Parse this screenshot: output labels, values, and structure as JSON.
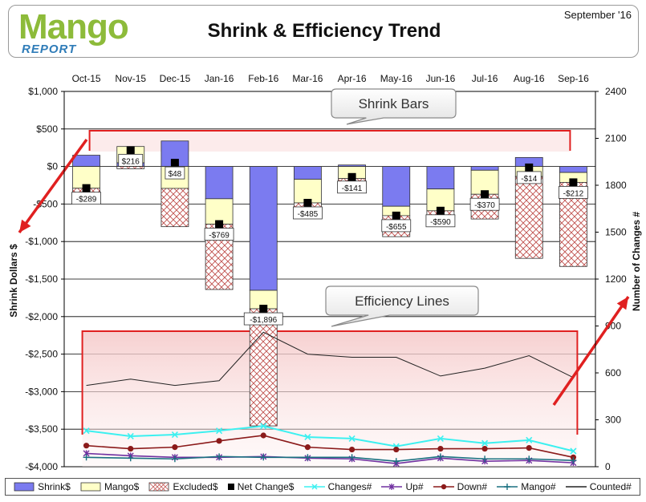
{
  "header": {
    "logo_text": "Mango",
    "logo_subtext": "REPORT",
    "title": "Shrink & Efficiency Trend",
    "date": "September '16"
  },
  "colors": {
    "shrink": "#7b7bf0",
    "mango": "#ffffc8",
    "excluded": "#c0504d",
    "changes": "#3cf0f0",
    "up": "#7030a0",
    "down": "#8b1a1a",
    "mango_line": "#1a7080",
    "counted": "#222222",
    "callout_red": "#e02020"
  },
  "chart_data": {
    "type": "bar",
    "title": "Shrink & Efficiency Trend",
    "categories": [
      "Oct-15",
      "Nov-15",
      "Dec-15",
      "Jan-16",
      "Feb-16",
      "Mar-16",
      "Apr-16",
      "May-16",
      "Jun-16",
      "Jul-16",
      "Aug-16",
      "Sep-16"
    ],
    "ylabel": "Shrink Dollars $",
    "y2label": "Number of Changes #",
    "ylim": [
      -4000,
      1000
    ],
    "y2lim": [
      0,
      2400
    ],
    "yticks": [
      1000,
      500,
      0,
      -500,
      -1000,
      -1500,
      -2000,
      -2500,
      -3000,
      -3500,
      -4000
    ],
    "ytick_labels": [
      "$1,000",
      "$500",
      "$0",
      "-$500",
      "-$1,000",
      "-$1,500",
      "-$2,000",
      "-$2,500",
      "-$3,000",
      "-$3,500",
      "-$4,000"
    ],
    "y2ticks": [
      2400,
      2100,
      1800,
      1500,
      1200,
      900,
      600,
      300,
      0
    ],
    "y2tick_labels": [
      "2400",
      "2100",
      "1800",
      "1500",
      "1200",
      "900",
      "600",
      "300",
      "0"
    ],
    "series": [
      {
        "name": "Shrink$",
        "kind": "stacked-bar",
        "values": [
          150,
          50,
          340,
          -430,
          -1650,
          -170,
          20,
          -530,
          -300,
          -50,
          120,
          -80
        ]
      },
      {
        "name": "Mango$",
        "kind": "stacked-bar",
        "values": [
          -290,
          216,
          -292,
          -339,
          -246,
          -315,
          -161,
          -125,
          -290,
          -320,
          -134,
          -132
        ]
      },
      {
        "name": "Excluded$",
        "kind": "stacked-bar",
        "values": [
          -120,
          -30,
          -510,
          -870,
          -1560,
          -70,
          -170,
          -280,
          -110,
          -330,
          -1090,
          -1120
        ]
      },
      {
        "name": "Net Change$",
        "kind": "marker",
        "values": [
          -289,
          216,
          48,
          -769,
          -1896,
          -485,
          -141,
          -655,
          -590,
          -370,
          -14,
          -212
        ]
      },
      {
        "name": "Changes#",
        "kind": "line",
        "axis": "y2",
        "values": [
          230,
          195,
          205,
          230,
          260,
          190,
          180,
          130,
          180,
          150,
          170,
          100
        ]
      },
      {
        "name": "Up#",
        "kind": "line",
        "axis": "y2",
        "values": [
          85,
          70,
          60,
          60,
          65,
          55,
          50,
          20,
          55,
          35,
          40,
          25
        ]
      },
      {
        "name": "Down#",
        "kind": "line",
        "axis": "y2",
        "values": [
          135,
          115,
          125,
          165,
          200,
          125,
          110,
          110,
          115,
          115,
          120,
          60
        ]
      },
      {
        "name": "Mango#",
        "kind": "line",
        "axis": "y2",
        "values": [
          60,
          55,
          50,
          65,
          60,
          60,
          60,
          35,
          65,
          50,
          50,
          40
        ]
      },
      {
        "name": "Counted#",
        "kind": "line",
        "axis": "y2",
        "values": [
          520,
          560,
          520,
          550,
          860,
          720,
          700,
          700,
          580,
          630,
          710,
          570
        ]
      }
    ],
    "data_labels": [
      "-$289",
      "$216",
      "$48",
      "-$769",
      "-$1,896",
      "-$485",
      "-$141",
      "-$655",
      "-$590",
      "-$370",
      "-$14",
      "-$212"
    ],
    "annotations": [
      "Shrink Bars",
      "Efficiency Lines"
    ],
    "legend": [
      "Shrink$",
      "Mango$",
      "Excluded$",
      "Net Change$",
      "Changes#",
      "Up#",
      "Down#",
      "Mango#",
      "Counted#"
    ]
  }
}
